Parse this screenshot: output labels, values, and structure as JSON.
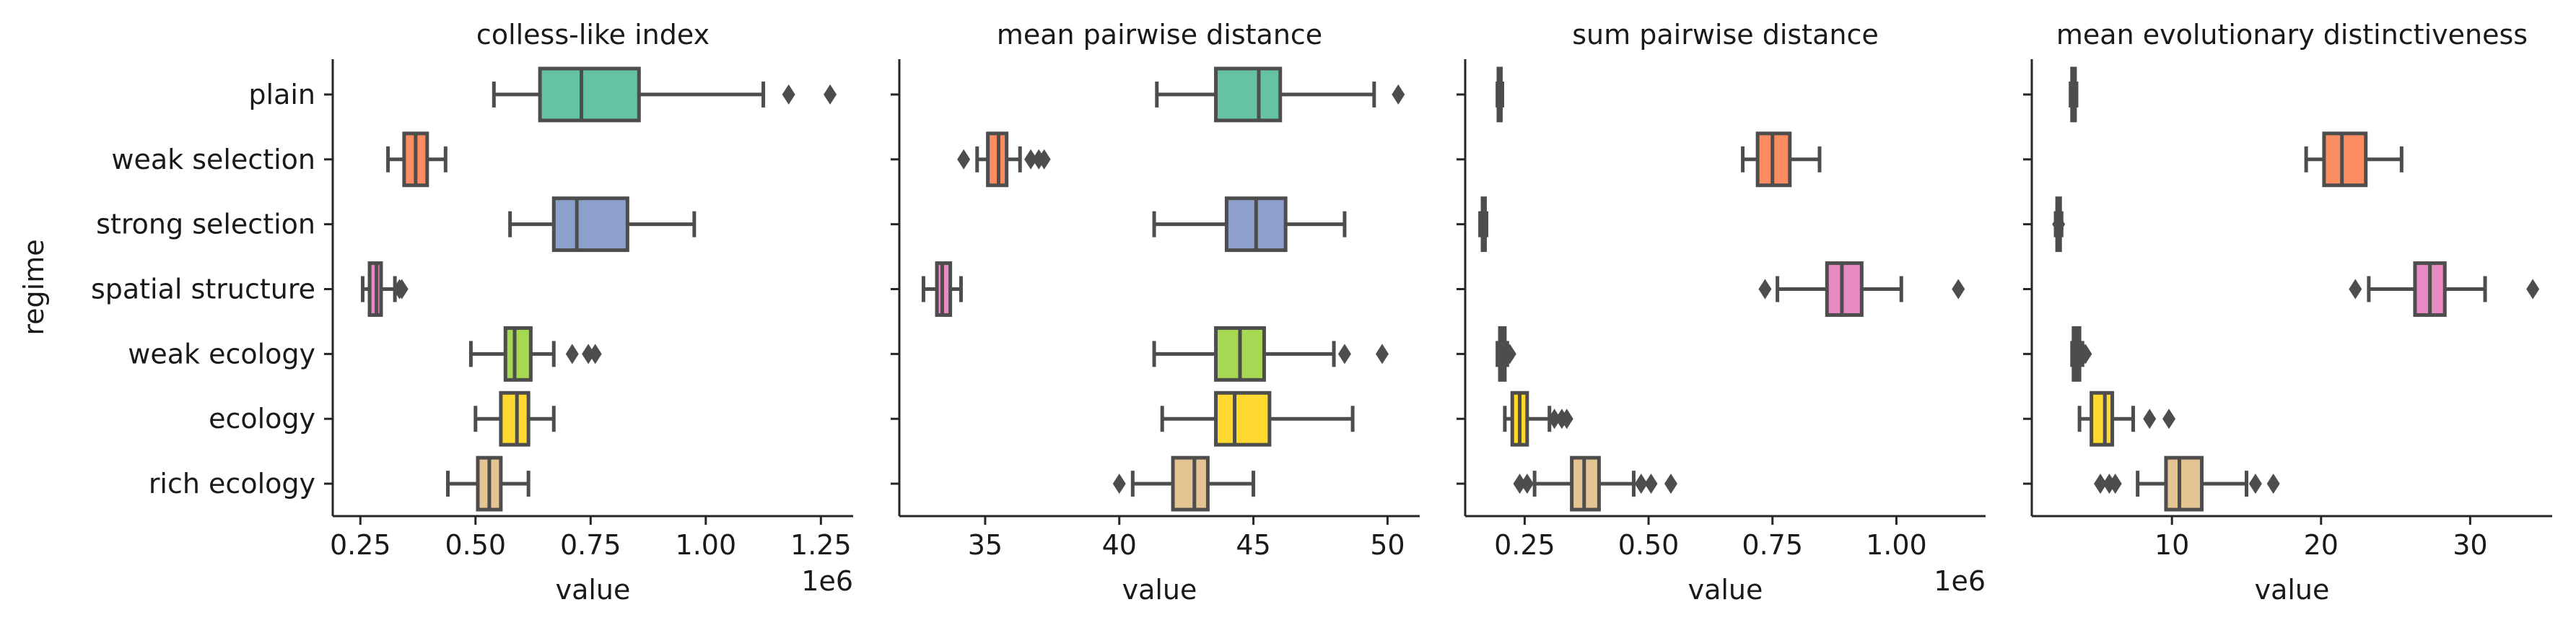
{
  "figure": {
    "ylabel": "regime"
  },
  "colors": {
    "plain": "#66c2a5",
    "weak selection": "#fc8d62",
    "strong selection": "#8da0cb",
    "spatial structure": "#e78ac3",
    "weak ecology": "#a6d854",
    "ecology": "#ffd92f",
    "rich ecology": "#e5c494",
    "line": "#4d4d4d"
  },
  "chart_data": [
    {
      "type": "box",
      "title": "colless-like index",
      "xlabel": "value",
      "x_offset_label": "1e6",
      "xticks": [
        0.25,
        0.5,
        0.75,
        1.0,
        1.25
      ],
      "xtick_labels": [
        "0.25",
        "0.50",
        "0.75",
        "1.00",
        "1.25"
      ],
      "xlim": [
        0.19,
        1.32
      ],
      "categories": [
        "plain",
        "weak selection",
        "strong selection",
        "spatial structure",
        "weak ecology",
        "ecology",
        "rich ecology"
      ],
      "boxes": [
        {
          "whislo": 0.54,
          "q1": 0.64,
          "med": 0.73,
          "q3": 0.855,
          "whishi": 1.125,
          "fliers": [
            1.18,
            1.27
          ]
        },
        {
          "whislo": 0.31,
          "q1": 0.345,
          "med": 0.37,
          "q3": 0.395,
          "whishi": 0.435,
          "fliers": []
        },
        {
          "whislo": 0.575,
          "q1": 0.67,
          "med": 0.72,
          "q3": 0.83,
          "whishi": 0.975,
          "fliers": []
        },
        {
          "whislo": 0.255,
          "q1": 0.27,
          "med": 0.285,
          "q3": 0.295,
          "whishi": 0.325,
          "fliers": [
            0.335,
            0.34
          ]
        },
        {
          "whislo": 0.49,
          "q1": 0.565,
          "med": 0.585,
          "q3": 0.62,
          "whishi": 0.67,
          "fliers": [
            0.71,
            0.745,
            0.76
          ]
        },
        {
          "whislo": 0.5,
          "q1": 0.555,
          "med": 0.59,
          "q3": 0.615,
          "whishi": 0.67,
          "fliers": []
        },
        {
          "whislo": 0.44,
          "q1": 0.505,
          "med": 0.53,
          "q3": 0.555,
          "whishi": 0.615,
          "fliers": []
        }
      ]
    },
    {
      "type": "box",
      "title": "mean pairwise distance",
      "xlabel": "value",
      "x_offset_label": "",
      "xticks": [
        35,
        40,
        45,
        50
      ],
      "xtick_labels": [
        "35",
        "40",
        "45",
        "50"
      ],
      "xlim": [
        31.8,
        51.2
      ],
      "categories": [
        "plain",
        "weak selection",
        "strong selection",
        "spatial structure",
        "weak ecology",
        "ecology",
        "rich ecology"
      ],
      "boxes": [
        {
          "whislo": 41.4,
          "q1": 43.6,
          "med": 45.2,
          "q3": 46.0,
          "whishi": 49.5,
          "fliers": [
            50.4
          ]
        },
        {
          "whislo": 34.7,
          "q1": 35.1,
          "med": 35.5,
          "q3": 35.8,
          "whishi": 36.3,
          "fliers": [
            34.2,
            36.7,
            37.0,
            37.2
          ]
        },
        {
          "whislo": 41.3,
          "q1": 44.0,
          "med": 45.1,
          "q3": 46.2,
          "whishi": 48.4,
          "fliers": []
        },
        {
          "whislo": 32.7,
          "q1": 33.2,
          "med": 33.4,
          "q3": 33.7,
          "whishi": 34.1,
          "fliers": []
        },
        {
          "whislo": 41.3,
          "q1": 43.6,
          "med": 44.5,
          "q3": 45.4,
          "whishi": 48.0,
          "fliers": [
            48.4,
            49.8
          ]
        },
        {
          "whislo": 41.6,
          "q1": 43.6,
          "med": 44.3,
          "q3": 45.6,
          "whishi": 48.7,
          "fliers": []
        },
        {
          "whislo": 40.5,
          "q1": 42.0,
          "med": 42.8,
          "q3": 43.3,
          "whishi": 45.0,
          "fliers": [
            40.0
          ]
        }
      ]
    },
    {
      "type": "box",
      "title": "sum pairwise distance",
      "xlabel": "value",
      "x_offset_label": "1e6",
      "xticks": [
        0.25,
        0.5,
        0.75,
        1.0
      ],
      "xtick_labels": [
        "0.25",
        "0.50",
        "0.75",
        "1.00"
      ],
      "xlim": [
        0.13,
        1.18
      ],
      "categories": [
        "plain",
        "weak selection",
        "strong selection",
        "spatial structure",
        "weak ecology",
        "ecology",
        "rich ecology"
      ],
      "boxes": [
        {
          "whislo": 0.195,
          "q1": 0.197,
          "med": 0.2,
          "q3": 0.202,
          "whishi": 0.205,
          "fliers": []
        },
        {
          "whislo": 0.69,
          "q1": 0.72,
          "med": 0.75,
          "q3": 0.785,
          "whishi": 0.845,
          "fliers": []
        },
        {
          "whislo": 0.16,
          "q1": 0.165,
          "med": 0.168,
          "q3": 0.17,
          "whishi": 0.173,
          "fliers": []
        },
        {
          "whislo": 0.76,
          "q1": 0.86,
          "med": 0.89,
          "q3": 0.93,
          "whishi": 1.01,
          "fliers": [
            0.735,
            1.125
          ]
        },
        {
          "whislo": 0.195,
          "q1": 0.2,
          "med": 0.205,
          "q3": 0.21,
          "whishi": 0.215,
          "fliers": [
            0.22
          ]
        },
        {
          "whislo": 0.21,
          "q1": 0.225,
          "med": 0.24,
          "q3": 0.255,
          "whishi": 0.3,
          "fliers": [
            0.31,
            0.325,
            0.335
          ]
        },
        {
          "whislo": 0.27,
          "q1": 0.345,
          "med": 0.37,
          "q3": 0.4,
          "whishi": 0.47,
          "fliers": [
            0.24,
            0.255,
            0.485,
            0.505,
            0.545
          ]
        }
      ]
    },
    {
      "type": "box",
      "title": "mean evolutionary distinctiveness",
      "xlabel": "value",
      "x_offset_label": "",
      "xticks": [
        10,
        20,
        30
      ],
      "xtick_labels": [
        "10",
        "20",
        "30"
      ],
      "xlim": [
        0.6,
        35.5
      ],
      "categories": [
        "plain",
        "weak selection",
        "strong selection",
        "spatial structure",
        "weak ecology",
        "ecology",
        "rich ecology"
      ],
      "boxes": [
        {
          "whislo": 3.2,
          "q1": 3.3,
          "med": 3.4,
          "q3": 3.5,
          "whishi": 3.6,
          "fliers": []
        },
        {
          "whislo": 19.0,
          "q1": 20.2,
          "med": 21.4,
          "q3": 23.0,
          "whishi": 25.4,
          "fliers": []
        },
        {
          "whislo": 2.2,
          "q1": 2.3,
          "med": 2.4,
          "q3": 2.5,
          "whishi": 2.6,
          "fliers": [
            2.4
          ]
        },
        {
          "whislo": 23.2,
          "q1": 26.3,
          "med": 27.3,
          "q3": 28.3,
          "whishi": 31.0,
          "fliers": [
            22.3,
            34.2
          ]
        },
        {
          "whislo": 3.3,
          "q1": 3.4,
          "med": 3.6,
          "q3": 3.8,
          "whishi": 4.0,
          "fliers": [
            4.1,
            4.2
          ]
        },
        {
          "whislo": 3.8,
          "q1": 4.6,
          "med": 5.5,
          "q3": 6.0,
          "whishi": 7.4,
          "fliers": [
            8.5,
            9.8
          ]
        },
        {
          "whislo": 7.7,
          "q1": 9.6,
          "med": 10.5,
          "q3": 12.0,
          "whishi": 15.0,
          "fliers": [
            5.2,
            5.8,
            6.2,
            15.6,
            16.8
          ]
        }
      ]
    }
  ]
}
